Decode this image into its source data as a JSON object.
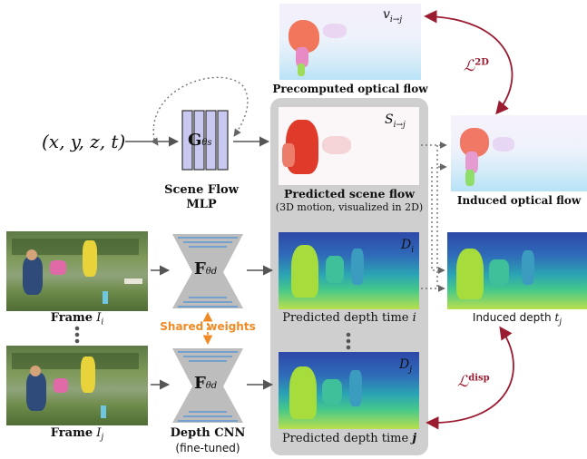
{
  "input": {
    "label": "(x, y, z, t)"
  },
  "mlp": {
    "symbol": "G",
    "subscript": "θs",
    "title_line1": "Scene Flow",
    "title_line2": "MLP"
  },
  "cnn": {
    "symbol": "F",
    "subscript": "θd",
    "title": "Depth CNN",
    "subtitle": "(fine-tuned)"
  },
  "shared_weights": "Shared weights",
  "frames": {
    "top": {
      "label": "Frame",
      "var": "I",
      "sub": "i"
    },
    "bottom": {
      "label": "Frame",
      "var": "I",
      "sub": "j"
    }
  },
  "precomputed_flow": {
    "caption": "Precomputed optical flow",
    "var": "v",
    "sub": "i→j"
  },
  "predicted_scene_flow": {
    "caption": "Predicted scene flow",
    "subcaption": "(3D motion, visualized in 2D)",
    "var": "S",
    "sub": "i→j"
  },
  "induced_flow": {
    "caption": "Induced optical flow"
  },
  "depth_i": {
    "caption": "Predicted depth time",
    "var": "i",
    "tag": "D",
    "tag_sub": "i"
  },
  "depth_j": {
    "caption": "Predicted depth time",
    "var": "j",
    "tag": "D",
    "tag_sub": "j"
  },
  "induced_depth": {
    "caption": "Induced depth",
    "var": "t",
    "sub": "j"
  },
  "losses": {
    "flow": {
      "symbol": "ℒ",
      "sup": "2D"
    },
    "disp": {
      "symbol": "ℒ",
      "sup": "disp"
    }
  },
  "colors": {
    "accent": "#9b1b30",
    "shared": "#f08a24",
    "mlp_fill": "#c8c8f0",
    "panel": "#cfcfcf"
  }
}
